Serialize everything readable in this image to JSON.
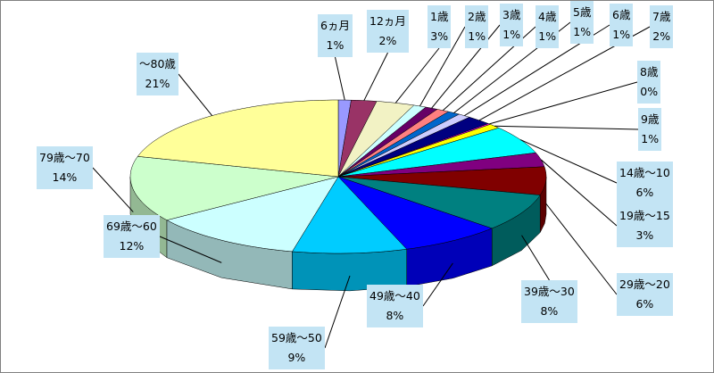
{
  "chart_data": {
    "type": "pie",
    "style": "3d-exploded-none",
    "start": "top, clockwise",
    "slices": [
      {
        "label": "6ヵ月",
        "pct_label": "1%",
        "value": 1,
        "color": "#9999ff"
      },
      {
        "label": "12ヵ月",
        "pct_label": "2%",
        "value": 2,
        "color": "#993366"
      },
      {
        "label": "1歳",
        "pct_label": "3%",
        "value": 3,
        "color": "#f2f2c4"
      },
      {
        "label": "2歳",
        "pct_label": "1%",
        "value": 1,
        "color": "#ccffff"
      },
      {
        "label": "3歳",
        "pct_label": "1%",
        "value": 1,
        "color": "#660066"
      },
      {
        "label": "4歳",
        "pct_label": "1%",
        "value": 1,
        "color": "#ff8080"
      },
      {
        "label": "5歳",
        "pct_label": "1%",
        "value": 1,
        "color": "#0066cc"
      },
      {
        "label": "6歳",
        "pct_label": "1%",
        "value": 1,
        "color": "#ccccff"
      },
      {
        "label": "7歳",
        "pct_label": "2%",
        "value": 2,
        "color": "#000080"
      },
      {
        "label": "8歳",
        "pct_label": "0%",
        "value": 0.2,
        "color": "#ff00ff"
      },
      {
        "label": "9歳",
        "pct_label": "1%",
        "value": 1,
        "color": "#ffff00"
      },
      {
        "label": "14歳〜10",
        "pct_label": "6%",
        "value": 6,
        "color": "#00ffff"
      },
      {
        "label": "19歳〜15",
        "pct_label": "3%",
        "value": 3,
        "color": "#800080"
      },
      {
        "label": "29歳〜20",
        "pct_label": "6%",
        "value": 6,
        "color": "#800000"
      },
      {
        "label": "39歳〜30",
        "pct_label": "8%",
        "value": 8,
        "color": "#008080"
      },
      {
        "label": "49歳〜40",
        "pct_label": "8%",
        "value": 8,
        "color": "#0000ff"
      },
      {
        "label": "59歳〜50",
        "pct_label": "9%",
        "value": 9,
        "color": "#00ccff"
      },
      {
        "label": "69歳〜60",
        "pct_label": "12%",
        "value": 12,
        "color": "#ccffff"
      },
      {
        "label": "79歳〜70",
        "pct_label": "14%",
        "value": 14,
        "color": "#ccffcc"
      },
      {
        "label": "〜80歳",
        "pct_label": "21%",
        "value": 21,
        "color": "#ffff99"
      }
    ]
  }
}
